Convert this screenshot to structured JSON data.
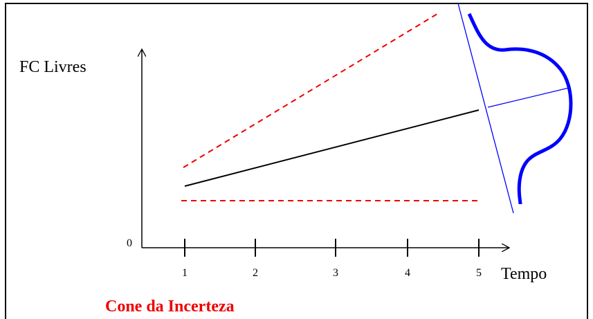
{
  "axis_label_y": "FC Livres",
  "origin": "0",
  "ticks": [
    "1",
    "2",
    "3",
    "4",
    "5"
  ],
  "axis_label_x": "Tempo",
  "caption": "Cone da Incerteza"
}
